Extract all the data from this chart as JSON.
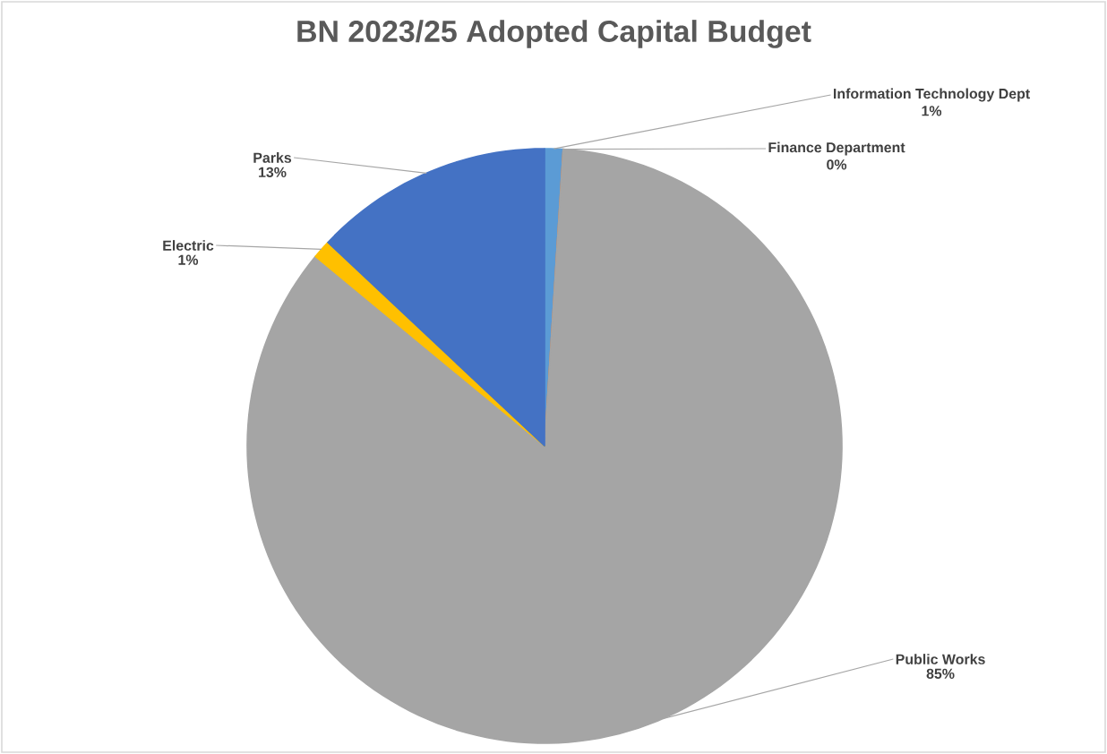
{
  "chart_data": {
    "type": "pie",
    "title": "BN 2023/25 Adopted Capital Budget",
    "categories": [
      "Information Technology Dept",
      "Finance Department",
      "Public Works",
      "Electric",
      "Parks"
    ],
    "values": [
      1,
      0,
      85,
      1,
      13
    ],
    "colors": [
      "#5b9bd5",
      "#ed7d31",
      "#a5a5a5",
      "#ffc000",
      "#4472c4"
    ],
    "value_labels": [
      "1%",
      "0%",
      "85%",
      "1%",
      "13%"
    ]
  }
}
